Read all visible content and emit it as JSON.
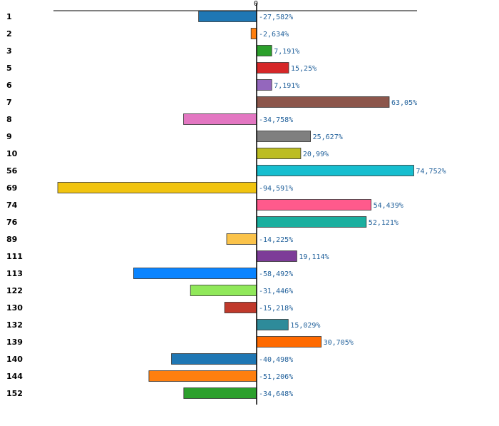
{
  "chart_data": {
    "type": "bar",
    "orientation": "horizontal",
    "title": "",
    "xlabel": "",
    "ylabel": "",
    "zero_tick_label": "0",
    "xlim": [
      -100,
      80
    ],
    "grid": false,
    "categories": [
      "1",
      "2",
      "3",
      "5",
      "6",
      "7",
      "8",
      "9",
      "10",
      "56",
      "69",
      "74",
      "76",
      "89",
      "111",
      "113",
      "122",
      "130",
      "132",
      "139",
      "140",
      "144",
      "152"
    ],
    "values": [
      -27.582,
      -2.634,
      7.191,
      15.25,
      7.191,
      63.05,
      -34.758,
      25.627,
      20.99,
      74.752,
      -94.591,
      54.439,
      52.121,
      -14.225,
      19.114,
      -58.492,
      -31.446,
      -15.218,
      15.029,
      30.705,
      -40.498,
      -51.206,
      -34.648
    ],
    "value_labels": [
      "-27,582%",
      "-2,634%",
      "7,191%",
      "15,25%",
      "7,191%",
      "63,05%",
      "-34,758%",
      "25,627%",
      "20,99%",
      "74,752%",
      "-94,591%",
      "54,439%",
      "52,121%",
      "-14,225%",
      "19,114%",
      "-58,492%",
      "-31,446%",
      "-15,218%",
      "15,029%",
      "30,705%",
      "-40,498%",
      "-51,206%",
      "-34,648%"
    ],
    "colors": [
      "#1f77b4",
      "#ff7f0e",
      "#2ca02c",
      "#d62728",
      "#9467bd",
      "#8c564b",
      "#e377c2",
      "#7f7f7f",
      "#bcbd22",
      "#17becf",
      "#f1c40f",
      "#ff5a8c",
      "#1aaf9f",
      "#fbc34a",
      "#7d3c98",
      "#0a84ff",
      "#90e85a",
      "#c0392b",
      "#2e8b9a",
      "#ff6a00",
      "#1f77b4",
      "#ff7f0e",
      "#2ca02c"
    ]
  }
}
